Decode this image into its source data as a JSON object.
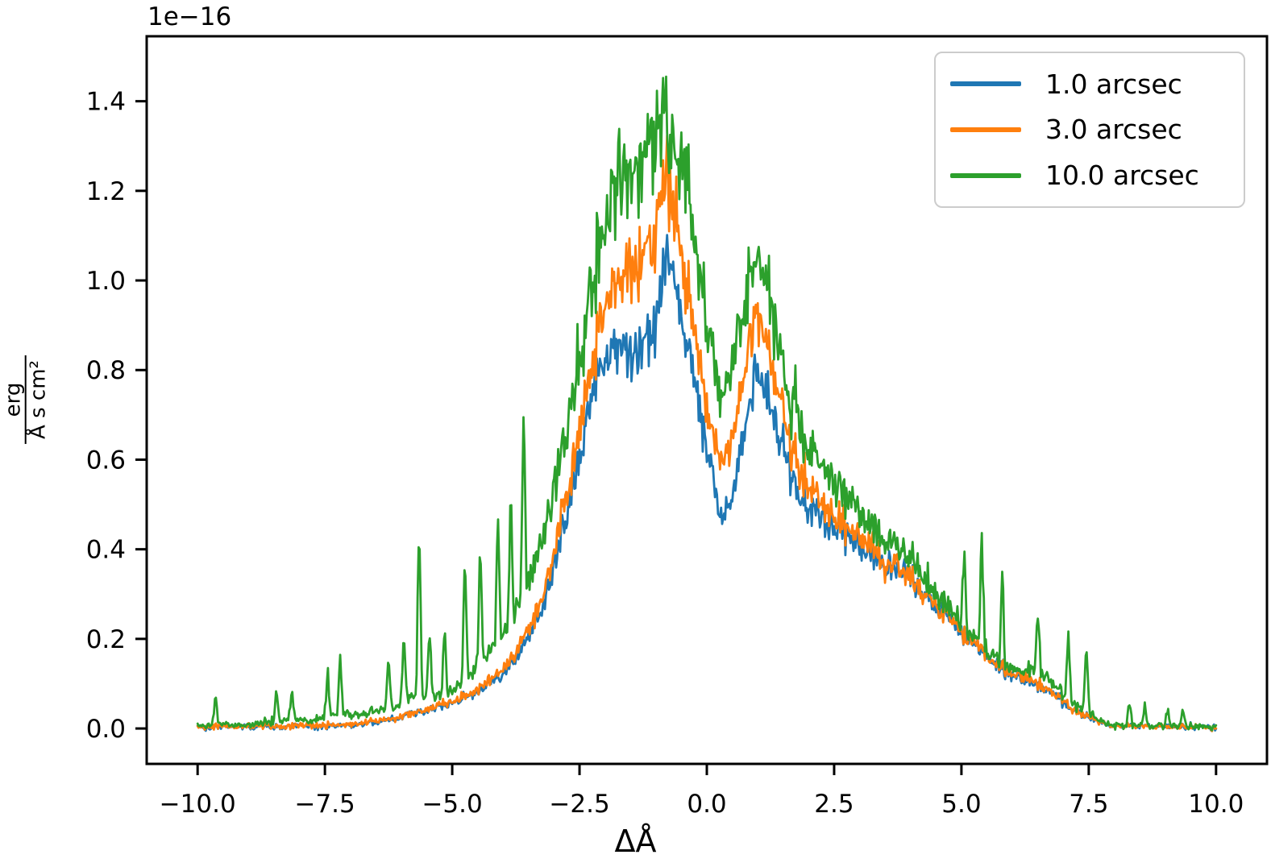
{
  "chart_data": {
    "type": "line",
    "title": "",
    "offset_text": "1e−16",
    "xlabel": "ΔÅ",
    "ylabel": {
      "numerator": "erg",
      "denominator": "Å s cm²"
    },
    "xlim": [
      -11,
      11
    ],
    "ylim": [
      -0.079,
      1.545
    ],
    "y_scale_factor": "1e-16",
    "grid": false,
    "legend": {
      "position": "upper right"
    },
    "xticks": {
      "values": [
        -10,
        -7.5,
        -5,
        -2.5,
        0,
        2.5,
        5,
        7.5,
        10
      ],
      "labels": [
        "−10.0",
        "−7.5",
        "−5.0",
        "−2.5",
        "0.0",
        "2.5",
        "5.0",
        "7.5",
        "10.0"
      ]
    },
    "yticks": {
      "values": [
        0,
        0.2,
        0.4,
        0.6,
        0.8,
        1.0,
        1.2,
        1.4
      ],
      "labels": [
        "0.0",
        "0.2",
        "0.4",
        "0.6",
        "0.8",
        "1.0",
        "1.2",
        "1.4"
      ]
    },
    "sampling": {
      "x_start": -10,
      "x_end": 10,
      "step": 0.02,
      "noise_abs": 0.006,
      "shared_seed": 42
    },
    "series": [
      {
        "name": "1.0 arcsec",
        "color": "#1f77b4",
        "noise_rel": 0.06,
        "seed": 101,
        "anchors": [
          [
            -10,
            0.004
          ],
          [
            -9,
            0.004
          ],
          [
            -8,
            0.005
          ],
          [
            -7.2,
            0.007
          ],
          [
            -6.8,
            0.01
          ],
          [
            -6.4,
            0.015
          ],
          [
            -6,
            0.025
          ],
          [
            -5.6,
            0.038
          ],
          [
            -5.2,
            0.05
          ],
          [
            -5,
            0.057
          ],
          [
            -4.6,
            0.075
          ],
          [
            -4.2,
            0.105
          ],
          [
            -3.9,
            0.135
          ],
          [
            -3.6,
            0.18
          ],
          [
            -3.3,
            0.25
          ],
          [
            -3,
            0.36
          ],
          [
            -2.8,
            0.45
          ],
          [
            -2.6,
            0.56
          ],
          [
            -2.4,
            0.67
          ],
          [
            -2.2,
            0.77
          ],
          [
            -2,
            0.82
          ],
          [
            -1.7,
            0.845
          ],
          [
            -1.4,
            0.855
          ],
          [
            -1.1,
            0.875
          ],
          [
            -0.95,
            0.93
          ],
          [
            -0.85,
            1.02
          ],
          [
            -0.78,
            1.09
          ],
          [
            -0.72,
            1.06
          ],
          [
            -0.6,
            0.97
          ],
          [
            -0.5,
            0.92
          ],
          [
            -0.4,
            0.88
          ],
          [
            -0.3,
            0.83
          ],
          [
            -0.2,
            0.76
          ],
          [
            -0.1,
            0.68
          ],
          [
            0,
            0.615
          ],
          [
            0.12,
            0.545
          ],
          [
            0.22,
            0.5
          ],
          [
            0.32,
            0.475
          ],
          [
            0.42,
            0.485
          ],
          [
            0.55,
            0.535
          ],
          [
            0.7,
            0.65
          ],
          [
            0.8,
            0.72
          ],
          [
            0.9,
            0.765
          ],
          [
            1,
            0.78
          ],
          [
            1.1,
            0.765
          ],
          [
            1.25,
            0.72
          ],
          [
            1.4,
            0.655
          ],
          [
            1.6,
            0.585
          ],
          [
            1.8,
            0.525
          ],
          [
            2,
            0.5
          ],
          [
            2.2,
            0.48
          ],
          [
            2.5,
            0.455
          ],
          [
            2.8,
            0.43
          ],
          [
            3.1,
            0.4
          ],
          [
            3.4,
            0.375
          ],
          [
            3.7,
            0.36
          ],
          [
            3.9,
            0.345
          ],
          [
            4.1,
            0.31
          ],
          [
            4.4,
            0.285
          ],
          [
            4.7,
            0.25
          ],
          [
            5,
            0.215
          ],
          [
            5.3,
            0.185
          ],
          [
            5.6,
            0.15
          ],
          [
            5.9,
            0.125
          ],
          [
            6.2,
            0.11
          ],
          [
            6.5,
            0.1
          ],
          [
            6.8,
            0.08
          ],
          [
            7.1,
            0.05
          ],
          [
            7.4,
            0.03
          ],
          [
            7.7,
            0.014
          ],
          [
            8,
            0.006
          ],
          [
            8.5,
            0.004
          ],
          [
            9,
            0.004
          ],
          [
            10,
            0.003
          ]
        ],
        "spikes": []
      },
      {
        "name": "3.0 arcsec",
        "color": "#ff7f0e",
        "noise_rel": 0.065,
        "seed": 202,
        "anchors": [
          [
            -10,
            0.004
          ],
          [
            -9,
            0.005
          ],
          [
            -8,
            0.006
          ],
          [
            -7.2,
            0.008
          ],
          [
            -6.8,
            0.011
          ],
          [
            -6.4,
            0.017
          ],
          [
            -6,
            0.027
          ],
          [
            -5.6,
            0.04
          ],
          [
            -5.2,
            0.054
          ],
          [
            -5,
            0.06
          ],
          [
            -4.6,
            0.08
          ],
          [
            -4.2,
            0.112
          ],
          [
            -3.9,
            0.145
          ],
          [
            -3.6,
            0.195
          ],
          [
            -3.3,
            0.27
          ],
          [
            -3,
            0.39
          ],
          [
            -2.8,
            0.49
          ],
          [
            -2.6,
            0.61
          ],
          [
            -2.4,
            0.73
          ],
          [
            -2.2,
            0.85
          ],
          [
            -2,
            0.95
          ],
          [
            -1.7,
            1.01
          ],
          [
            -1.4,
            1.045
          ],
          [
            -1.1,
            1.08
          ],
          [
            -0.95,
            1.13
          ],
          [
            -0.85,
            1.21
          ],
          [
            -0.78,
            1.27
          ],
          [
            -0.72,
            1.22
          ],
          [
            -0.6,
            1.12
          ],
          [
            -0.5,
            1.06
          ],
          [
            -0.4,
            1.0
          ],
          [
            -0.3,
            0.94
          ],
          [
            -0.2,
            0.86
          ],
          [
            -0.1,
            0.78
          ],
          [
            0,
            0.715
          ],
          [
            0.12,
            0.655
          ],
          [
            0.22,
            0.625
          ],
          [
            0.32,
            0.61
          ],
          [
            0.42,
            0.625
          ],
          [
            0.55,
            0.67
          ],
          [
            0.7,
            0.78
          ],
          [
            0.8,
            0.85
          ],
          [
            0.9,
            0.9
          ],
          [
            1,
            0.915
          ],
          [
            1.1,
            0.89
          ],
          [
            1.25,
            0.835
          ],
          [
            1.4,
            0.755
          ],
          [
            1.6,
            0.66
          ],
          [
            1.8,
            0.585
          ],
          [
            2,
            0.55
          ],
          [
            2.2,
            0.52
          ],
          [
            2.5,
            0.48
          ],
          [
            2.8,
            0.45
          ],
          [
            3.1,
            0.415
          ],
          [
            3.4,
            0.385
          ],
          [
            3.7,
            0.37
          ],
          [
            3.9,
            0.35
          ],
          [
            4.1,
            0.315
          ],
          [
            4.4,
            0.29
          ],
          [
            4.7,
            0.255
          ],
          [
            5,
            0.218
          ],
          [
            5.3,
            0.188
          ],
          [
            5.6,
            0.152
          ],
          [
            5.9,
            0.127
          ],
          [
            6.2,
            0.112
          ],
          [
            6.5,
            0.102
          ],
          [
            6.8,
            0.082
          ],
          [
            7.1,
            0.052
          ],
          [
            7.4,
            0.031
          ],
          [
            7.7,
            0.015
          ],
          [
            8,
            0.006
          ],
          [
            8.5,
            0.004
          ],
          [
            9,
            0.004
          ],
          [
            10,
            0.003
          ]
        ],
        "spikes": []
      },
      {
        "name": "10.0 arcsec",
        "color": "#2ca02c",
        "noise_rel": 0.075,
        "seed": 303,
        "anchors": [
          [
            -10,
            0.006
          ],
          [
            -9.6,
            0.01
          ],
          [
            -9.2,
            0.007
          ],
          [
            -8.8,
            0.009
          ],
          [
            -8.4,
            0.018
          ],
          [
            -8.1,
            0.02
          ],
          [
            -7.8,
            0.016
          ],
          [
            -7.5,
            0.025
          ],
          [
            -7.2,
            0.035
          ],
          [
            -7,
            0.03
          ],
          [
            -6.7,
            0.032
          ],
          [
            -6.4,
            0.04
          ],
          [
            -6.1,
            0.05
          ],
          [
            -5.8,
            0.07
          ],
          [
            -5.5,
            0.075
          ],
          [
            -5.2,
            0.072
          ],
          [
            -5,
            0.085
          ],
          [
            -4.7,
            0.115
          ],
          [
            -4.4,
            0.15
          ],
          [
            -4.1,
            0.19
          ],
          [
            -3.8,
            0.245
          ],
          [
            -3.5,
            0.33
          ],
          [
            -3.2,
            0.44
          ],
          [
            -3,
            0.52
          ],
          [
            -2.8,
            0.63
          ],
          [
            -2.6,
            0.76
          ],
          [
            -2.4,
            0.9
          ],
          [
            -2.2,
            1.04
          ],
          [
            -2,
            1.15
          ],
          [
            -1.8,
            1.21
          ],
          [
            -1.5,
            1.255
          ],
          [
            -1.2,
            1.28
          ],
          [
            -1,
            1.3
          ],
          [
            -0.9,
            1.34
          ],
          [
            -0.82,
            1.42
          ],
          [
            -0.75,
            1.36
          ],
          [
            -0.65,
            1.3
          ],
          [
            -0.55,
            1.27
          ],
          [
            -0.45,
            1.3
          ],
          [
            -0.38,
            1.26
          ],
          [
            -0.3,
            1.18
          ],
          [
            -0.2,
            1.08
          ],
          [
            -0.1,
            0.98
          ],
          [
            0,
            0.9
          ],
          [
            0.12,
            0.825
          ],
          [
            0.22,
            0.78
          ],
          [
            0.32,
            0.755
          ],
          [
            0.42,
            0.775
          ],
          [
            0.55,
            0.835
          ],
          [
            0.7,
            0.935
          ],
          [
            0.8,
            1.0
          ],
          [
            0.9,
            1.03
          ],
          [
            1,
            1.04
          ],
          [
            1.1,
            1.005
          ],
          [
            1.25,
            0.945
          ],
          [
            1.4,
            0.865
          ],
          [
            1.6,
            0.765
          ],
          [
            1.8,
            0.69
          ],
          [
            2,
            0.64
          ],
          [
            2.2,
            0.6
          ],
          [
            2.5,
            0.555
          ],
          [
            2.8,
            0.515
          ],
          [
            3.1,
            0.47
          ],
          [
            3.4,
            0.435
          ],
          [
            3.7,
            0.41
          ],
          [
            3.9,
            0.39
          ],
          [
            4.1,
            0.35
          ],
          [
            4.4,
            0.32
          ],
          [
            4.7,
            0.275
          ],
          [
            5,
            0.235
          ],
          [
            5.3,
            0.2
          ],
          [
            5.6,
            0.17
          ],
          [
            5.9,
            0.14
          ],
          [
            6.2,
            0.125
          ],
          [
            6.45,
            0.135
          ],
          [
            6.6,
            0.125
          ],
          [
            6.8,
            0.1
          ],
          [
            7,
            0.078
          ],
          [
            7.2,
            0.058
          ],
          [
            7.4,
            0.04
          ],
          [
            7.6,
            0.026
          ],
          [
            7.8,
            0.013
          ],
          [
            8,
            0.007
          ],
          [
            8.5,
            0.006
          ],
          [
            9,
            0.005
          ],
          [
            10,
            0.004
          ]
        ],
        "spikes": [
          [
            -9.65,
            0.02
          ],
          [
            -8.45,
            0.025
          ],
          [
            -8.15,
            0.025
          ],
          [
            -7.45,
            0.035
          ],
          [
            -7.2,
            0.04
          ],
          [
            -6.25,
            0.04
          ],
          [
            -5.95,
            0.05
          ],
          [
            -5.65,
            0.13
          ],
          [
            -5.45,
            0.05
          ],
          [
            -5.15,
            0.05
          ],
          [
            -4.75,
            0.09
          ],
          [
            -4.45,
            0.09
          ],
          [
            -4.1,
            0.1
          ],
          [
            -3.85,
            0.09
          ],
          [
            -3.6,
            0.13
          ],
          [
            5.05,
            0.06
          ],
          [
            5.4,
            0.08
          ],
          [
            5.8,
            0.06
          ],
          [
            6.5,
            0.045
          ],
          [
            7.1,
            0.05
          ],
          [
            7.45,
            0.055
          ],
          [
            8.3,
            0.015
          ],
          [
            8.6,
            0.015
          ],
          [
            9.05,
            0.012
          ],
          [
            9.35,
            0.012
          ]
        ]
      }
    ]
  }
}
